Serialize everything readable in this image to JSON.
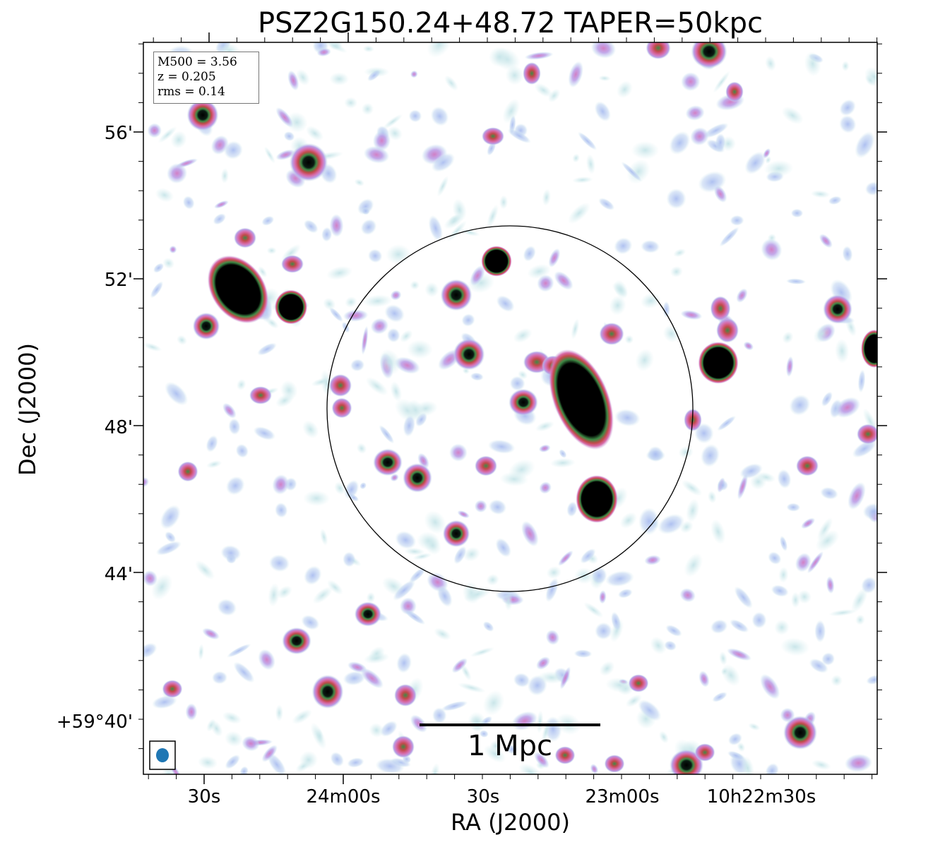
{
  "title": "PSZ2G150.24+48.72 TAPER=50kpc",
  "axes": {
    "xlabel": "RA (J2000)",
    "ylabel": "Dec (J2000)",
    "x_ticks": [
      "30s",
      "24m00s",
      "30s",
      "23m00s",
      "10h22m30s"
    ],
    "y_ticks": [
      "56'",
      "52'",
      "48'",
      "44'",
      "+59°40'"
    ]
  },
  "info": {
    "mass": "M500 = 3.56",
    "redshift": "z = 0.205",
    "rms": "rms = 0.14"
  },
  "scalebar": {
    "label": "1 Mpc"
  },
  "colors": {
    "frame": "#000000",
    "beam": "#1f77b4",
    "noise_light": "#c6e4e8",
    "noise_blue": "#b4c4ee",
    "noise_purple": "#c49ee0",
    "source_magenta": "#d86aa8",
    "source_red": "#c24a4a",
    "source_green": "#3d8a45",
    "source_core": "#000000"
  },
  "icons": {
    "beam": "beam-ellipse-icon"
  }
}
